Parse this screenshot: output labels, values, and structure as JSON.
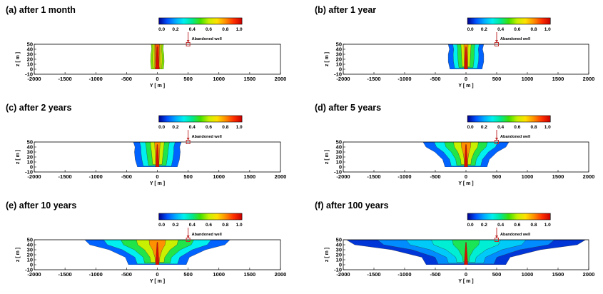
{
  "colorbar": {
    "ticks": [
      "0.0",
      "0.2",
      "0.4",
      "0.6",
      "0.8",
      "1.0"
    ],
    "stops": [
      "#00008b",
      "#0050ff",
      "#00aaff",
      "#00f0f0",
      "#00e890",
      "#40e000",
      "#c8f000",
      "#ffe000",
      "#ff9000",
      "#ff3000",
      "#c80000"
    ]
  },
  "well": {
    "label": "Abandoned well",
    "y": 500,
    "marker_color": "#c03030"
  },
  "chart_data": [
    {
      "type": "heatmap",
      "title": "(a) after 1 month",
      "xlabel": "Y [ m ]",
      "ylabel": "z [ m ]",
      "xlim": [
        -2000,
        2000
      ],
      "ylim": [
        -10,
        50
      ],
      "xticks": [
        "-2000",
        "-1500",
        "-1000",
        "-500",
        "0",
        "500",
        "1000",
        "1500",
        "2000"
      ],
      "yticks": [
        "-10",
        "0",
        "10",
        "20",
        "30",
        "40",
        "50"
      ],
      "plume_halfwidth_top": 100,
      "plume_halfwidth_bottom": 110
    },
    {
      "type": "heatmap",
      "title": "(b) after 1 year",
      "xlabel": "Y [ m ]",
      "ylabel": "z [ m ]",
      "xlim": [
        -2000,
        2000
      ],
      "ylim": [
        -10,
        50
      ],
      "xticks": [
        "-2000",
        "-1500",
        "-1000",
        "-500",
        "0",
        "500",
        "1000",
        "1500",
        "2000"
      ],
      "yticks": [
        "-10",
        "0",
        "10",
        "20",
        "30",
        "40",
        "50"
      ],
      "plume_halfwidth_top": 290,
      "plume_halfwidth_bottom": 290
    },
    {
      "type": "heatmap",
      "title": "(c) after 2 years",
      "xlabel": "Y [ m ]",
      "ylabel": "z [ m ]",
      "xlim": [
        -2000,
        2000
      ],
      "ylim": [
        -10,
        50
      ],
      "xticks": [
        "-2000",
        "-1500",
        "-1000",
        "-500",
        "0",
        "500",
        "1000",
        "1500",
        "2000"
      ],
      "yticks": [
        "-10",
        "0",
        "10",
        "20",
        "30",
        "40",
        "50"
      ],
      "plume_halfwidth_top": 390,
      "plume_halfwidth_bottom": 360
    },
    {
      "type": "heatmap",
      "title": "(d) after 5 years",
      "xlabel": "Y [ m ]",
      "ylabel": "z [ m ]",
      "xlim": [
        -2000,
        2000
      ],
      "ylim": [
        -10,
        50
      ],
      "xticks": [
        "-2000",
        "-1500",
        "-1000",
        "-500",
        "0",
        "500",
        "1000",
        "1500",
        "2000"
      ],
      "yticks": [
        "-10",
        "0",
        "10",
        "20",
        "30",
        "40",
        "50"
      ],
      "plume_halfwidth_top": 700,
      "plume_halfwidth_bottom": 380
    },
    {
      "type": "heatmap",
      "title": "(e) after 10 years",
      "xlabel": "Y [ m ]",
      "ylabel": "z [ m ]",
      "xlim": [
        -2000,
        2000
      ],
      "ylim": [
        -10,
        50
      ],
      "xticks": [
        "-2000",
        "-1500",
        "-1000",
        "-500",
        "0",
        "500",
        "1000",
        "1500",
        "2000"
      ],
      "yticks": [
        "-10",
        "0",
        "10",
        "20",
        "30",
        "40",
        "50"
      ],
      "plume_halfwidth_top": 1180,
      "plume_halfwidth_bottom": 520
    },
    {
      "type": "heatmap",
      "title": "(f) after 100 years",
      "xlabel": "Y [ m ]",
      "ylabel": "z [ m ]",
      "xlim": [
        -2000,
        2000
      ],
      "ylim": [
        -10,
        50
      ],
      "xticks": [
        "-2000",
        "-1500",
        "-1000",
        "-500",
        "0",
        "500",
        "1000",
        "1500",
        "2000"
      ],
      "yticks": [
        "-10",
        "0",
        "10",
        "20",
        "30",
        "40",
        "50"
      ],
      "plume_halfwidth_top": 1950,
      "plume_halfwidth_bottom": 720
    }
  ]
}
